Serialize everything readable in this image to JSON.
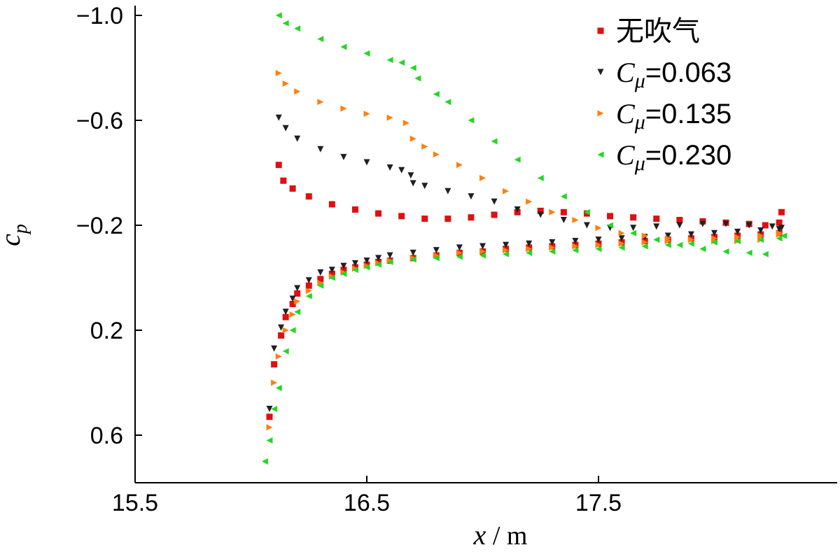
{
  "chart_data": {
    "type": "scatter",
    "xlabel": "x",
    "xlabel_unit": "m",
    "ylabel_base": "c",
    "ylabel_sub": "p",
    "xlim": [
      15.5,
      18.5
    ],
    "ylim": [
      0.8,
      -1.05
    ],
    "y_inverted": true,
    "grid": false,
    "legend_position": "top-right",
    "xticks": [
      15.5,
      16.5,
      17.5
    ],
    "xtick_labels": [
      "15.5",
      "16.5",
      "17.5"
    ],
    "yticks": [
      -1.0,
      -0.6,
      -0.2,
      0.2,
      0.6
    ],
    "ytick_labels": [
      "−1.0",
      "−0.6",
      "−0.2",
      "0.2",
      "0.6"
    ],
    "series": [
      {
        "name": "无吹气",
        "name_prefix": "",
        "name_suffix": "",
        "color": "#e01010",
        "marker": "square",
        "upper": [
          [
            16.12,
            -0.43
          ],
          [
            16.14,
            -0.37
          ],
          [
            16.18,
            -0.34
          ],
          [
            16.25,
            -0.31
          ],
          [
            16.35,
            -0.28
          ],
          [
            16.45,
            -0.26
          ],
          [
            16.55,
            -0.245
          ],
          [
            16.65,
            -0.235
          ],
          [
            16.75,
            -0.225
          ],
          [
            16.85,
            -0.225
          ],
          [
            16.95,
            -0.23
          ],
          [
            17.05,
            -0.24
          ],
          [
            17.15,
            -0.25
          ],
          [
            17.25,
            -0.255
          ],
          [
            17.35,
            -0.25
          ],
          [
            17.45,
            -0.245
          ],
          [
            17.55,
            -0.235
          ],
          [
            17.65,
            -0.23
          ],
          [
            17.75,
            -0.225
          ],
          [
            17.85,
            -0.22
          ],
          [
            17.95,
            -0.215
          ],
          [
            18.05,
            -0.21
          ],
          [
            18.15,
            -0.205
          ],
          [
            18.22,
            -0.2
          ],
          [
            18.28,
            -0.21
          ],
          [
            18.29,
            -0.25
          ]
        ],
        "lower": [
          [
            16.08,
            0.53
          ],
          [
            16.1,
            0.33
          ],
          [
            16.13,
            0.22
          ],
          [
            16.15,
            0.15
          ],
          [
            16.18,
            0.1
          ],
          [
            16.2,
            0.06
          ],
          [
            16.25,
            0.03
          ],
          [
            16.3,
            0.005
          ],
          [
            16.35,
            -0.015
          ],
          [
            16.4,
            -0.03
          ],
          [
            16.45,
            -0.04
          ],
          [
            16.5,
            -0.05
          ],
          [
            16.55,
            -0.06
          ],
          [
            16.6,
            -0.065
          ],
          [
            16.7,
            -0.075
          ],
          [
            16.8,
            -0.085
          ],
          [
            16.9,
            -0.095
          ],
          [
            17.0,
            -0.1
          ],
          [
            17.1,
            -0.11
          ],
          [
            17.2,
            -0.115
          ],
          [
            17.3,
            -0.12
          ],
          [
            17.4,
            -0.125
          ],
          [
            17.5,
            -0.13
          ],
          [
            17.6,
            -0.135
          ],
          [
            17.7,
            -0.14
          ],
          [
            17.8,
            -0.145
          ],
          [
            17.9,
            -0.15
          ],
          [
            18.0,
            -0.155
          ],
          [
            18.1,
            -0.16
          ],
          [
            18.2,
            -0.165
          ],
          [
            18.28,
            -0.17
          ]
        ]
      },
      {
        "name": "=0.063",
        "name_prefix": "C",
        "name_suffix": "μ",
        "color": "#202020",
        "marker": "triangle-down",
        "upper": [
          [
            16.12,
            -0.61
          ],
          [
            16.15,
            -0.57
          ],
          [
            16.2,
            -0.53
          ],
          [
            16.3,
            -0.49
          ],
          [
            16.4,
            -0.46
          ],
          [
            16.5,
            -0.44
          ],
          [
            16.6,
            -0.42
          ],
          [
            16.65,
            -0.41
          ],
          [
            16.69,
            -0.39
          ],
          [
            16.7,
            -0.36
          ],
          [
            16.75,
            -0.35
          ],
          [
            16.85,
            -0.33
          ],
          [
            16.95,
            -0.31
          ],
          [
            17.05,
            -0.29
          ],
          [
            17.15,
            -0.26
          ],
          [
            17.25,
            -0.24
          ],
          [
            17.35,
            -0.22
          ],
          [
            17.45,
            -0.2
          ],
          [
            17.55,
            -0.19
          ],
          [
            17.65,
            -0.19
          ],
          [
            17.75,
            -0.195
          ],
          [
            17.85,
            -0.2
          ],
          [
            17.95,
            -0.205
          ],
          [
            18.05,
            -0.205
          ],
          [
            18.15,
            -0.2
          ],
          [
            18.25,
            -0.195
          ],
          [
            18.29,
            -0.19
          ]
        ],
        "lower": [
          [
            16.08,
            0.5
          ],
          [
            16.1,
            0.27
          ],
          [
            16.13,
            0.19
          ],
          [
            16.15,
            0.13
          ],
          [
            16.18,
            0.08
          ],
          [
            16.2,
            0.04
          ],
          [
            16.25,
            0.01
          ],
          [
            16.3,
            -0.02
          ],
          [
            16.35,
            -0.03
          ],
          [
            16.4,
            -0.045
          ],
          [
            16.45,
            -0.055
          ],
          [
            16.5,
            -0.065
          ],
          [
            16.55,
            -0.075
          ],
          [
            16.6,
            -0.085
          ],
          [
            16.7,
            -0.095
          ],
          [
            16.8,
            -0.105
          ],
          [
            16.9,
            -0.115
          ],
          [
            17.0,
            -0.12
          ],
          [
            17.1,
            -0.125
          ],
          [
            17.2,
            -0.13
          ],
          [
            17.3,
            -0.135
          ],
          [
            17.4,
            -0.14
          ],
          [
            17.5,
            -0.145
          ],
          [
            17.6,
            -0.15
          ],
          [
            17.7,
            -0.155
          ],
          [
            17.8,
            -0.16
          ],
          [
            17.9,
            -0.165
          ],
          [
            18.0,
            -0.17
          ],
          [
            18.1,
            -0.175
          ],
          [
            18.2,
            -0.18
          ],
          [
            18.28,
            -0.185
          ]
        ]
      },
      {
        "name": "=0.135",
        "name_prefix": "C",
        "name_suffix": "μ",
        "color": "#ff7f0e",
        "marker": "triangle-right",
        "upper": [
          [
            16.12,
            -0.78
          ],
          [
            16.15,
            -0.74
          ],
          [
            16.2,
            -0.71
          ],
          [
            16.3,
            -0.67
          ],
          [
            16.4,
            -0.645
          ],
          [
            16.5,
            -0.625
          ],
          [
            16.6,
            -0.61
          ],
          [
            16.67,
            -0.59
          ],
          [
            16.7,
            -0.53
          ],
          [
            16.75,
            -0.5
          ],
          [
            16.8,
            -0.47
          ],
          [
            16.9,
            -0.43
          ],
          [
            17.0,
            -0.38
          ],
          [
            17.1,
            -0.33
          ],
          [
            17.2,
            -0.29
          ],
          [
            17.3,
            -0.25
          ],
          [
            17.4,
            -0.22
          ],
          [
            17.5,
            -0.19
          ],
          [
            17.6,
            -0.17
          ],
          [
            17.7,
            -0.16
          ],
          [
            17.8,
            -0.15
          ],
          [
            17.9,
            -0.145
          ],
          [
            18.0,
            -0.14
          ],
          [
            18.1,
            -0.14
          ],
          [
            18.2,
            -0.145
          ],
          [
            18.28,
            -0.17
          ]
        ],
        "lower": [
          [
            16.08,
            0.57
          ],
          [
            16.1,
            0.4
          ],
          [
            16.12,
            0.3
          ],
          [
            16.15,
            0.2
          ],
          [
            16.18,
            0.14
          ],
          [
            16.2,
            0.09
          ],
          [
            16.25,
            0.05
          ],
          [
            16.3,
            0.02
          ],
          [
            16.35,
            -0.005
          ],
          [
            16.4,
            -0.02
          ],
          [
            16.45,
            -0.035
          ],
          [
            16.5,
            -0.045
          ],
          [
            16.55,
            -0.055
          ],
          [
            16.6,
            -0.065
          ],
          [
            16.7,
            -0.075
          ],
          [
            16.8,
            -0.085
          ],
          [
            16.9,
            -0.095
          ],
          [
            17.0,
            -0.1
          ],
          [
            17.1,
            -0.105
          ],
          [
            17.2,
            -0.11
          ],
          [
            17.3,
            -0.115
          ],
          [
            17.4,
            -0.12
          ],
          [
            17.5,
            -0.125
          ],
          [
            17.6,
            -0.13
          ],
          [
            17.7,
            -0.135
          ],
          [
            17.8,
            -0.14
          ],
          [
            17.9,
            -0.145
          ],
          [
            18.0,
            -0.15
          ],
          [
            18.1,
            -0.155
          ],
          [
            18.2,
            -0.16
          ],
          [
            18.28,
            -0.165
          ]
        ]
      },
      {
        "name": "=0.230",
        "name_prefix": "C",
        "name_suffix": "μ",
        "color": "#22d822",
        "marker": "triangle-left",
        "upper": [
          [
            16.12,
            -1.0
          ],
          [
            16.15,
            -0.97
          ],
          [
            16.2,
            -0.95
          ],
          [
            16.3,
            -0.91
          ],
          [
            16.4,
            -0.88
          ],
          [
            16.5,
            -0.855
          ],
          [
            16.6,
            -0.83
          ],
          [
            16.65,
            -0.82
          ],
          [
            16.7,
            -0.8
          ],
          [
            16.72,
            -0.76
          ],
          [
            16.8,
            -0.7
          ],
          [
            16.85,
            -0.67
          ],
          [
            16.95,
            -0.6
          ],
          [
            17.05,
            -0.52
          ],
          [
            17.15,
            -0.45
          ],
          [
            17.25,
            -0.38
          ],
          [
            17.35,
            -0.31
          ],
          [
            17.45,
            -0.25
          ],
          [
            17.55,
            -0.2
          ],
          [
            17.65,
            -0.17
          ],
          [
            17.75,
            -0.145
          ],
          [
            17.85,
            -0.125
          ],
          [
            17.95,
            -0.11
          ],
          [
            18.05,
            -0.1
          ],
          [
            18.15,
            -0.095
          ],
          [
            18.22,
            -0.09
          ],
          [
            18.3,
            -0.16
          ]
        ],
        "lower": [
          [
            16.06,
            0.7
          ],
          [
            16.08,
            0.62
          ],
          [
            16.1,
            0.5
          ],
          [
            16.12,
            0.42
          ],
          [
            16.15,
            0.28
          ],
          [
            16.18,
            0.2
          ],
          [
            16.2,
            0.13
          ],
          [
            16.25,
            0.07
          ],
          [
            16.3,
            0.03
          ],
          [
            16.35,
            0.0
          ],
          [
            16.4,
            -0.015
          ],
          [
            16.45,
            -0.03
          ],
          [
            16.5,
            -0.04
          ],
          [
            16.55,
            -0.05
          ],
          [
            16.6,
            -0.06
          ],
          [
            16.7,
            -0.07
          ],
          [
            16.8,
            -0.075
          ],
          [
            16.9,
            -0.08
          ],
          [
            17.0,
            -0.085
          ],
          [
            17.1,
            -0.09
          ],
          [
            17.2,
            -0.095
          ],
          [
            17.3,
            -0.1
          ],
          [
            17.4,
            -0.105
          ],
          [
            17.5,
            -0.11
          ],
          [
            17.6,
            -0.115
          ],
          [
            17.7,
            -0.12
          ],
          [
            17.8,
            -0.125
          ],
          [
            17.9,
            -0.13
          ],
          [
            18.0,
            -0.135
          ],
          [
            18.1,
            -0.14
          ],
          [
            18.2,
            -0.145
          ],
          [
            18.28,
            -0.15
          ]
        ]
      }
    ]
  }
}
